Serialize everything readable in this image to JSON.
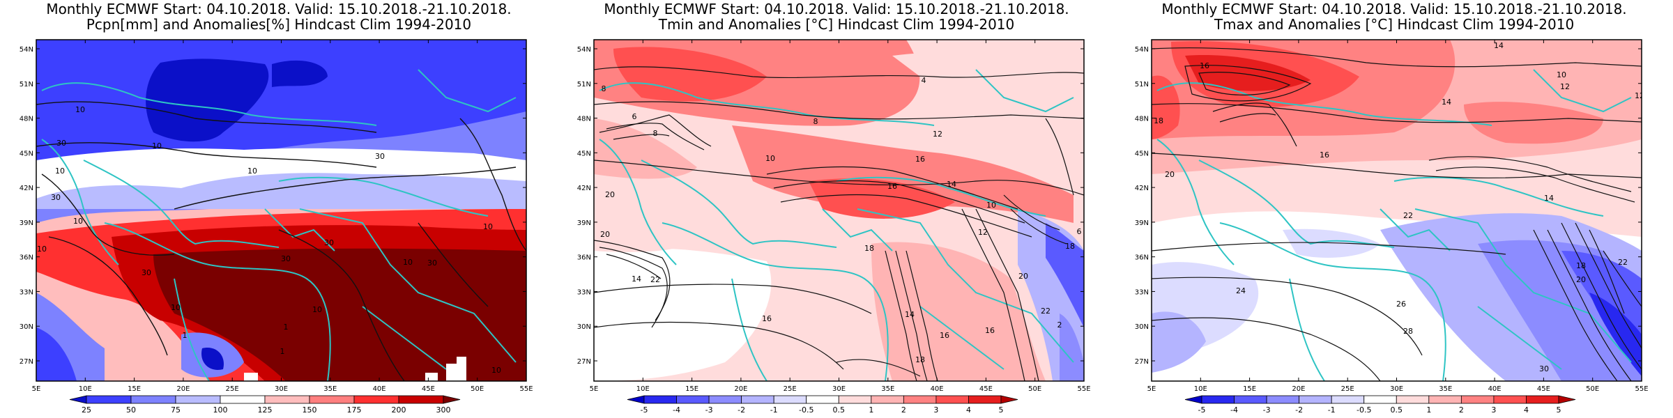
{
  "panels": [
    {
      "title_line1": "Monthly ECMWF Start: 04.10.2018. Valid: 15.10.2018.-21.10.2018.",
      "title_line2": "Pcpn[mm] and Anomalies[%] Hindcast Clim 1994-2010",
      "lat_labels": [
        "54N",
        "51N",
        "48N",
        "45N",
        "42N",
        "39N",
        "36N",
        "33N",
        "30N",
        "27N"
      ],
      "lon_labels": [
        "5E",
        "10E",
        "15E",
        "20E",
        "25E",
        "30E",
        "35E",
        "40E",
        "45E",
        "50E",
        "55E"
      ],
      "colorbar_labels": [
        "25",
        "50",
        "75",
        "100",
        "125",
        "150",
        "175",
        "200",
        "300"
      ],
      "colorbar_colors": [
        "#0b10c8",
        "#3d40ff",
        "#7d82ff",
        "#b9bcff",
        "#ffffff",
        "#ffbdbd",
        "#ff7f7f",
        "#ff3030",
        "#c80000",
        "#7a0000"
      ],
      "contour_labels": [
        "10",
        "30",
        "10",
        "30",
        "10",
        "10",
        "30",
        "10",
        "10",
        "10",
        "30",
        "30",
        "10",
        "30",
        "10",
        "30",
        "1",
        "1",
        "1",
        "10",
        "10"
      ]
    },
    {
      "title_line1": "Monthly ECMWF Start: 04.10.2018. Valid: 15.10.2018.-21.10.2018.",
      "title_line2": "Tmin and Anomalies [°C] Hindcast Clim 1994-2010",
      "lat_labels": [
        "54N",
        "51N",
        "48N",
        "45N",
        "42N",
        "39N",
        "36N",
        "33N",
        "30N",
        "27N"
      ],
      "lon_labels": [
        "5E",
        "10E",
        "15E",
        "20E",
        "25E",
        "30E",
        "35E",
        "40E",
        "45E",
        "50E",
        "55E"
      ],
      "colorbar_labels": [
        "-5",
        "-4",
        "-3",
        "-2",
        "-1",
        "-0.5",
        "0.5",
        "1",
        "2",
        "3",
        "4",
        "5"
      ],
      "colorbar_colors": [
        "#0000c8",
        "#2828f0",
        "#5a5aff",
        "#8c8cff",
        "#b4b4ff",
        "#dcdcff",
        "#ffffff",
        "#ffdcdc",
        "#ffb4b4",
        "#ff8282",
        "#ff5050",
        "#e61e1e",
        "#b40000"
      ],
      "contour_labels": [
        "8",
        "4",
        "6",
        "8",
        "10",
        "12",
        "8",
        "16",
        "20",
        "14",
        "16",
        "18",
        "20",
        "22",
        "16",
        "14",
        "12",
        "10",
        "16",
        "20",
        "22",
        "14",
        "16",
        "18",
        "6",
        "2",
        "18"
      ]
    },
    {
      "title_line1": "Monthly ECMWF Start: 04.10.2018. Valid: 15.10.2018.-21.10.2018.",
      "title_line2": "Tmax and Anomalies [°C] Hindcast Clim 1994-2010",
      "lat_labels": [
        "54N",
        "51N",
        "48N",
        "45N",
        "42N",
        "39N",
        "36N",
        "33N",
        "30N",
        "27N"
      ],
      "lon_labels": [
        "5E",
        "10E",
        "15E",
        "20E",
        "25E",
        "30E",
        "35E",
        "40E",
        "45E",
        "50E",
        "55E"
      ],
      "colorbar_labels": [
        "-5",
        "-4",
        "-3",
        "-2",
        "-1",
        "-0.5",
        "0.5",
        "1",
        "2",
        "3",
        "4",
        "5"
      ],
      "colorbar_colors": [
        "#0000c8",
        "#2828f0",
        "#5a5aff",
        "#8c8cff",
        "#b4b4ff",
        "#dcdcff",
        "#ffffff",
        "#ffdcdc",
        "#ffb4b4",
        "#ff8282",
        "#ff5050",
        "#e61e1e",
        "#b40000"
      ],
      "contour_labels": [
        "14",
        "16",
        "10",
        "12",
        "14",
        "18",
        "16",
        "20",
        "22",
        "24",
        "26",
        "28",
        "30",
        "18",
        "20",
        "22",
        "14",
        "12"
      ]
    }
  ],
  "colors": {
    "coastline": "#2ec4c4",
    "contour": "#111111",
    "frame": "#000000"
  }
}
